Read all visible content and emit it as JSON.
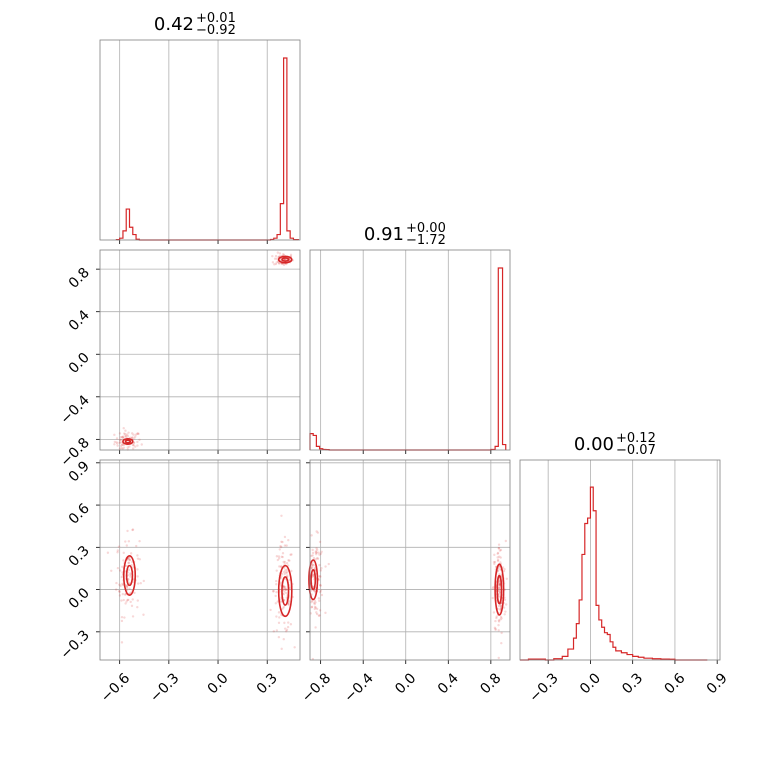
{
  "chart_data": {
    "type": "corner",
    "series_color": "#d62728",
    "grid": true,
    "parameters": [
      {
        "title_main": "0.42",
        "title_plus": "+0.01",
        "title_minus": "−0.92",
        "range": [
          -0.72,
          0.5
        ]
      },
      {
        "title_main": "0.91",
        "title_plus": "+0.00",
        "title_minus": "−1.72",
        "range": [
          -0.9,
          0.98
        ]
      },
      {
        "title_main": "0.00",
        "title_plus": "+0.12",
        "title_minus": "−0.07",
        "range": [
          -0.5,
          0.92
        ]
      }
    ],
    "ticks": {
      "p1": [
        {
          "v": -0.6,
          "l": "−0.6"
        },
        {
          "v": -0.3,
          "l": "−0.3"
        },
        {
          "v": 0.0,
          "l": "0.0"
        },
        {
          "v": 0.3,
          "l": "0.3"
        }
      ],
      "p2": [
        {
          "v": -0.8,
          "l": "−0.8"
        },
        {
          "v": -0.4,
          "l": "−0.4"
        },
        {
          "v": 0.0,
          "l": "0.0"
        },
        {
          "v": 0.4,
          "l": "0.4"
        },
        {
          "v": 0.8,
          "l": "0.8"
        }
      ],
      "p3": [
        {
          "v": -0.3,
          "l": "−0.3"
        },
        {
          "v": 0.0,
          "l": "0.0"
        },
        {
          "v": 0.3,
          "l": "0.3"
        },
        {
          "v": 0.6,
          "l": "0.6"
        },
        {
          "v": 0.9,
          "l": "0.9"
        }
      ]
    },
    "histograms": [
      {
        "param": 0,
        "bins": [
          [
            -0.62,
            0.002
          ],
          [
            -0.6,
            0.01
          ],
          [
            -0.58,
            0.05
          ],
          [
            -0.56,
            0.17
          ],
          [
            -0.54,
            0.07
          ],
          [
            -0.52,
            0.03
          ],
          [
            -0.5,
            0.004
          ],
          [
            -0.48,
            0.0
          ],
          [
            0.3,
            0.0
          ],
          [
            0.32,
            0.003
          ],
          [
            0.34,
            0.01
          ],
          [
            0.36,
            0.03
          ],
          [
            0.38,
            0.2
          ],
          [
            0.4,
            1.0
          ],
          [
            0.42,
            0.05
          ],
          [
            0.44,
            0.01
          ],
          [
            0.46,
            0.002
          ]
        ]
      },
      {
        "param": 1,
        "bins": [
          [
            -0.9,
            0.09
          ],
          [
            -0.87,
            0.08
          ],
          [
            -0.84,
            0.02
          ],
          [
            -0.81,
            0.007
          ],
          [
            -0.78,
            0.003
          ],
          [
            -0.75,
            0.002
          ],
          [
            -0.72,
            0.0
          ],
          [
            0.8,
            0.003
          ],
          [
            0.84,
            0.02
          ],
          [
            0.87,
            1.0
          ],
          [
            0.91,
            0.03
          ]
        ]
      },
      {
        "param": 2,
        "bins": [
          [
            -0.5,
            0.0
          ],
          [
            -0.44,
            0.005
          ],
          [
            -0.38,
            0.005
          ],
          [
            -0.32,
            0.0
          ],
          [
            -0.26,
            0.007
          ],
          [
            -0.2,
            0.02
          ],
          [
            -0.16,
            0.06
          ],
          [
            -0.12,
            0.12
          ],
          [
            -0.1,
            0.2
          ],
          [
            -0.08,
            0.33
          ],
          [
            -0.06,
            0.58
          ],
          [
            -0.04,
            0.75
          ],
          [
            -0.02,
            0.78
          ],
          [
            0.0,
            0.95
          ],
          [
            0.02,
            0.82
          ],
          [
            0.04,
            0.3
          ],
          [
            0.06,
            0.22
          ],
          [
            0.08,
            0.18
          ],
          [
            0.1,
            0.15
          ],
          [
            0.12,
            0.14
          ],
          [
            0.14,
            0.1
          ],
          [
            0.16,
            0.07
          ],
          [
            0.18,
            0.05
          ],
          [
            0.22,
            0.04
          ],
          [
            0.26,
            0.03
          ],
          [
            0.3,
            0.02
          ],
          [
            0.34,
            0.015
          ],
          [
            0.38,
            0.01
          ],
          [
            0.44,
            0.007
          ],
          [
            0.5,
            0.005
          ],
          [
            0.56,
            0.004
          ],
          [
            0.6,
            0.0
          ],
          [
            0.7,
            0.0
          ],
          [
            0.8,
            0.0
          ]
        ]
      }
    ],
    "scatter_clusters": [
      {
        "xp": 0,
        "yp": 1,
        "cx": -0.55,
        "cy": -0.82,
        "sx": 0.04,
        "sy": 0.05,
        "n": 80
      },
      {
        "xp": 0,
        "yp": 1,
        "cx": 0.4,
        "cy": 0.89,
        "sx": 0.03,
        "sy": 0.03,
        "n": 80
      },
      {
        "xp": 0,
        "yp": 2,
        "cx": -0.55,
        "cy": 0.1,
        "sx": 0.035,
        "sy": 0.14,
        "n": 120
      },
      {
        "xp": 0,
        "yp": 2,
        "cx": 0.4,
        "cy": 0.0,
        "sx": 0.03,
        "sy": 0.16,
        "n": 140
      },
      {
        "xp": 1,
        "yp": 2,
        "cx": -0.85,
        "cy": 0.07,
        "sx": 0.04,
        "sy": 0.14,
        "n": 120
      },
      {
        "xp": 1,
        "yp": 2,
        "cx": 0.88,
        "cy": 0.0,
        "sx": 0.03,
        "sy": 0.17,
        "n": 140
      }
    ],
    "contours": [
      {
        "xp": 0,
        "yp": 1,
        "cx": -0.55,
        "cy": -0.82,
        "rx": [
          0.03,
          0.015
        ],
        "ry": [
          0.025,
          0.012
        ]
      },
      {
        "xp": 0,
        "yp": 1,
        "cx": 0.41,
        "cy": 0.89,
        "rx": [
          0.04,
          0.02
        ],
        "ry": [
          0.03,
          0.015
        ]
      },
      {
        "xp": 0,
        "yp": 2,
        "cx": -0.54,
        "cy": 0.1,
        "rx": [
          0.035,
          0.018
        ],
        "ry": [
          0.14,
          0.07
        ]
      },
      {
        "xp": 0,
        "yp": 2,
        "cx": 0.41,
        "cy": -0.01,
        "rx": [
          0.04,
          0.02
        ],
        "ry": [
          0.18,
          0.1
        ]
      },
      {
        "xp": 1,
        "yp": 2,
        "cx": -0.87,
        "cy": 0.07,
        "rx": [
          0.04,
          0.02
        ],
        "ry": [
          0.14,
          0.07
        ]
      },
      {
        "xp": 1,
        "yp": 2,
        "cx": 0.88,
        "cy": 0.0,
        "rx": [
          0.04,
          0.02
        ],
        "ry": [
          0.18,
          0.1
        ]
      }
    ]
  }
}
